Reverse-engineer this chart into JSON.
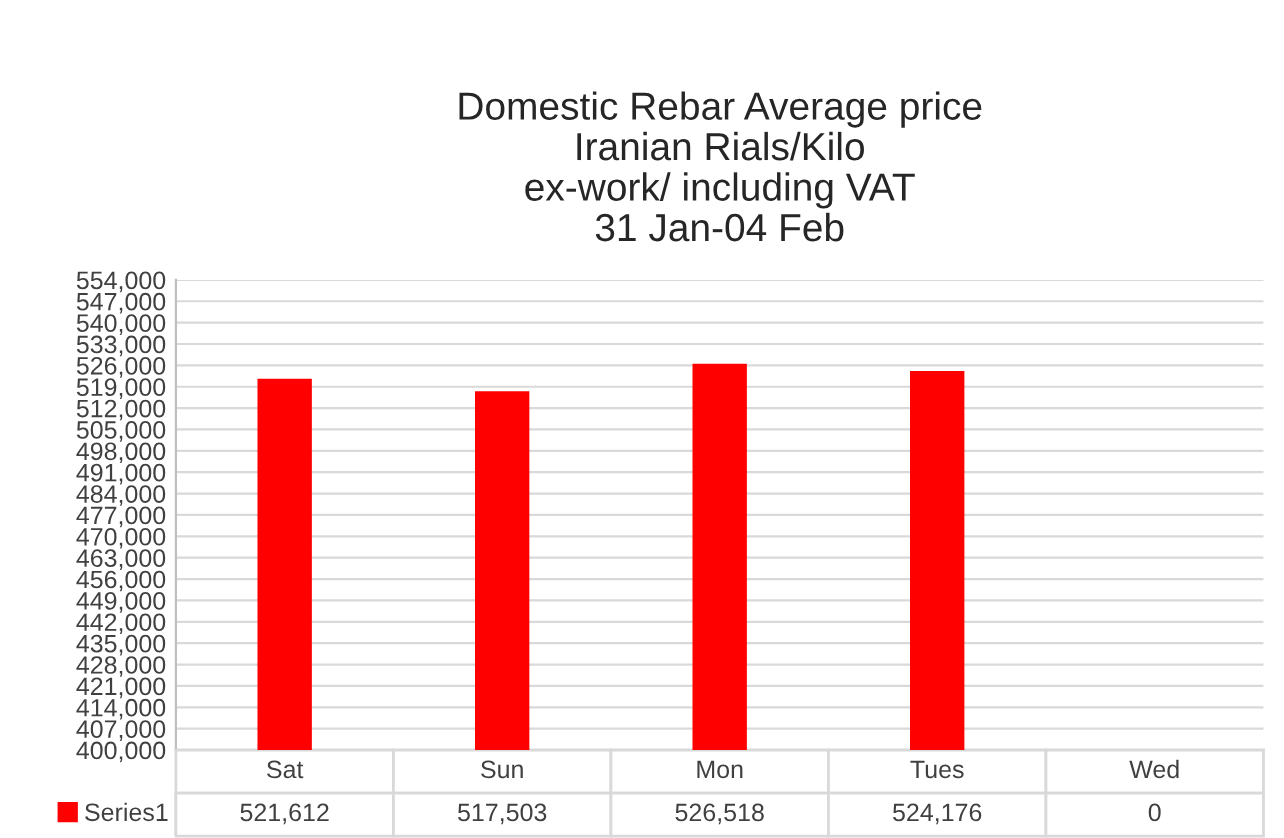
{
  "chart_data": {
    "type": "bar",
    "title": "Domestic Rebar Average price\nIranian Rials/Kilo\nex-work/ including VAT\n31 Jan-04 Feb",
    "categories": [
      "Sat",
      "Sun",
      "Mon",
      "Tues",
      "Wed"
    ],
    "series": [
      {
        "name": "Series1",
        "color": "#ff0000",
        "values": [
          521612,
          517503,
          526518,
          524176,
          null
        ],
        "value_labels": [
          "521,612",
          "517,503",
          "526,518",
          "524,176",
          "0"
        ]
      }
    ],
    "ylim": [
      400000,
      554000
    ],
    "yticks": [
      {
        "value": 400000,
        "label": "400,000"
      },
      {
        "value": 407000,
        "label": "407,000"
      },
      {
        "value": 414000,
        "label": "414,000"
      },
      {
        "value": 421000,
        "label": "421,000"
      },
      {
        "value": 428000,
        "label": "428,000"
      },
      {
        "value": 435000,
        "label": "435,000"
      },
      {
        "value": 442000,
        "label": "442,000"
      },
      {
        "value": 449000,
        "label": "449,000"
      },
      {
        "value": 456000,
        "label": "456,000"
      },
      {
        "value": 463000,
        "label": "463,000"
      },
      {
        "value": 470000,
        "label": "470,000"
      },
      {
        "value": 477000,
        "label": "477,000"
      },
      {
        "value": 484000,
        "label": "484,000"
      },
      {
        "value": 491000,
        "label": "491,000"
      },
      {
        "value": 498000,
        "label": "498,000"
      },
      {
        "value": 505000,
        "label": "505,000"
      },
      {
        "value": 512000,
        "label": "512,000"
      },
      {
        "value": 519000,
        "label": "519,000"
      },
      {
        "value": 526000,
        "label": "526,000"
      },
      {
        "value": 533000,
        "label": "533,000"
      },
      {
        "value": 540000,
        "label": "540,000"
      },
      {
        "value": 547000,
        "label": "547,000"
      },
      {
        "value": 554000,
        "label": "554,000"
      }
    ],
    "grid": "y",
    "legend": "bottom"
  }
}
